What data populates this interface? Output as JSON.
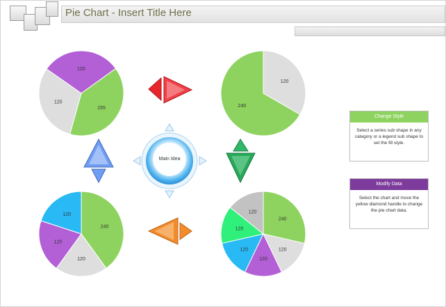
{
  "title": "Pie Chart - Insert Title Here",
  "center_label": "Main Idea",
  "colors": {
    "purple": "#b35fd6",
    "green": "#8ed35f",
    "gray": "#dedede",
    "gray_dark": "#c2c2c2",
    "blue": "#29b9f5",
    "spring": "#2ef07a",
    "arrow_red": "#e8262e",
    "arrow_green": "#27a85a",
    "arrow_orange": "#f28c2a",
    "arrow_blue": "#6f9df2"
  },
  "panels": {
    "change_style": {
      "heading": "Change Style",
      "text": "Select a series sub shape in any category or a legend sub shape to set the fill style.",
      "color": "#8ed35f"
    },
    "modify_data": {
      "heading": "Modify Data",
      "text": "Select the chart and move the yellow diamond handle to change the pie chart data.",
      "color": "#7d3c9c"
    }
  },
  "chart_data": [
    {
      "type": "pie",
      "name": "top-left",
      "values": [
        120,
        155,
        120
      ],
      "colors": [
        "purple",
        "green",
        "gray"
      ],
      "labels": [
        "120",
        "155",
        "120"
      ]
    },
    {
      "type": "pie",
      "name": "top-right",
      "values": [
        120,
        240
      ],
      "colors": [
        "gray",
        "green"
      ],
      "labels": [
        "120",
        "240"
      ]
    },
    {
      "type": "pie",
      "name": "bottom-left",
      "values": [
        240,
        120,
        120,
        120
      ],
      "colors": [
        "green",
        "gray",
        "purple",
        "blue"
      ],
      "labels": [
        "240",
        "120",
        "120",
        "120"
      ]
    },
    {
      "type": "pie",
      "name": "bottom-right",
      "values": [
        240,
        120,
        120,
        120,
        120,
        120
      ],
      "colors": [
        "green",
        "gray",
        "purple",
        "blue",
        "spring",
        "gray_dark"
      ],
      "labels": [
        "240",
        "120",
        "120",
        "120",
        "120",
        "120"
      ]
    }
  ]
}
